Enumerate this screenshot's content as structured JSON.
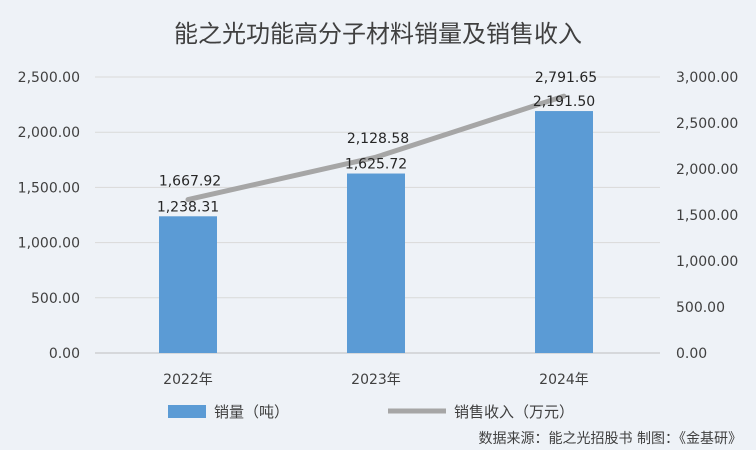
{
  "chart_data": {
    "type": "bar",
    "title": "能之光功能高分子材料销量及销售收入",
    "categories": [
      "2022年",
      "2023年",
      "2024年"
    ],
    "y_left": {
      "ticks": [
        "0.00",
        "500.00",
        "1,000.00",
        "1,500.00",
        "2,000.00",
        "2,500.00"
      ],
      "range": [
        0,
        2500
      ]
    },
    "y_right": {
      "ticks": [
        "0.00",
        "500.00",
        "1,000.00",
        "1,500.00",
        "2,000.00",
        "2,500.00",
        "3,000.00"
      ],
      "range": [
        0,
        3000
      ]
    },
    "series": [
      {
        "name": "销量（吨）",
        "type": "bar",
        "axis": "left",
        "values": [
          1238.31,
          1625.72,
          2191.5
        ],
        "labels": [
          "1,238.31",
          "1,625.72",
          "2,191.50"
        ],
        "color": "#5b9bd5"
      },
      {
        "name": "销售收入（万元）",
        "type": "line",
        "axis": "right",
        "values": [
          1667.92,
          2128.58,
          2791.65
        ],
        "labels": [
          "1,667.92",
          "2,128.58",
          "2,791.65"
        ],
        "color": "#a6a6a6"
      }
    ],
    "grid": true,
    "legend": "bottom"
  },
  "source_note": "数据来源：能之光招股书    制图：《金基研》"
}
